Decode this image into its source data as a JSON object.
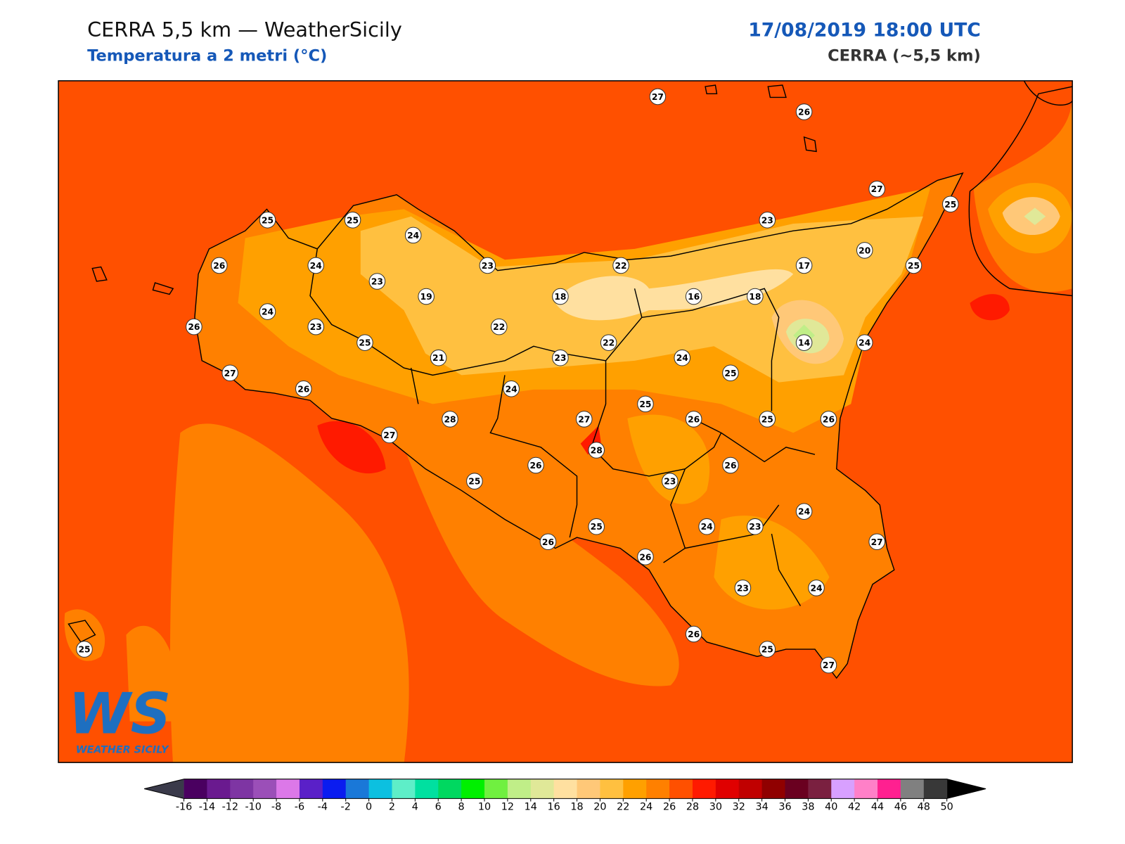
{
  "header": {
    "title": "CERRA 5,5 km — WeatherSicily",
    "subtitle": "Temperatura a 2 metri (°C)",
    "datetime": "17/08/2019 18:00 UTC",
    "model": "CERRA (~5,5 km)"
  },
  "stations": [
    27,
    26,
    27,
    25,
    25,
    25,
    24,
    23,
    20,
    26,
    24,
    23,
    22,
    17,
    25,
    23,
    19,
    18,
    16,
    18,
    24,
    26,
    23,
    22,
    25,
    22,
    14,
    24,
    21,
    23,
    24,
    27,
    25,
    26,
    24,
    25,
    28,
    27,
    26,
    25,
    26,
    27,
    28,
    26,
    26,
    25,
    23,
    24,
    25,
    24,
    23,
    26,
    27,
    26,
    23,
    24,
    26,
    25,
    27,
    25
  ],
  "colorbar": {
    "ticks": [
      -16,
      -14,
      -12,
      -10,
      -8,
      -6,
      -4,
      -2,
      0,
      2,
      4,
      6,
      8,
      10,
      12,
      14,
      16,
      18,
      20,
      22,
      24,
      26,
      28,
      30,
      32,
      34,
      36,
      38,
      40,
      42,
      44,
      46,
      48,
      50
    ],
    "colors": [
      "#4a0060",
      "#6a1a8f",
      "#7e35a3",
      "#9b4fb8",
      "#dc78e8",
      "#5a20c8",
      "#0a1cf0",
      "#1a78d8",
      "#0cc0e0",
      "#5eeec8",
      "#00e0a0",
      "#00d860",
      "#00f000",
      "#70f040",
      "#c0ee88",
      "#e0e898",
      "#ffe0a0",
      "#ffc878",
      "#ffc040",
      "#ffa000",
      "#ff8000",
      "#ff5000",
      "#ff1a00",
      "#e00000",
      "#c00000",
      "#900000",
      "#6a0020",
      "#7a2040",
      "#d8a0ff",
      "#ff80c8",
      "#ff2090",
      "#808080",
      "#383838"
    ],
    "under_color": "#3a3a4a",
    "over_color": "#000000"
  },
  "logo": {
    "letters": "WS",
    "text": "WEATHER SICILY"
  }
}
